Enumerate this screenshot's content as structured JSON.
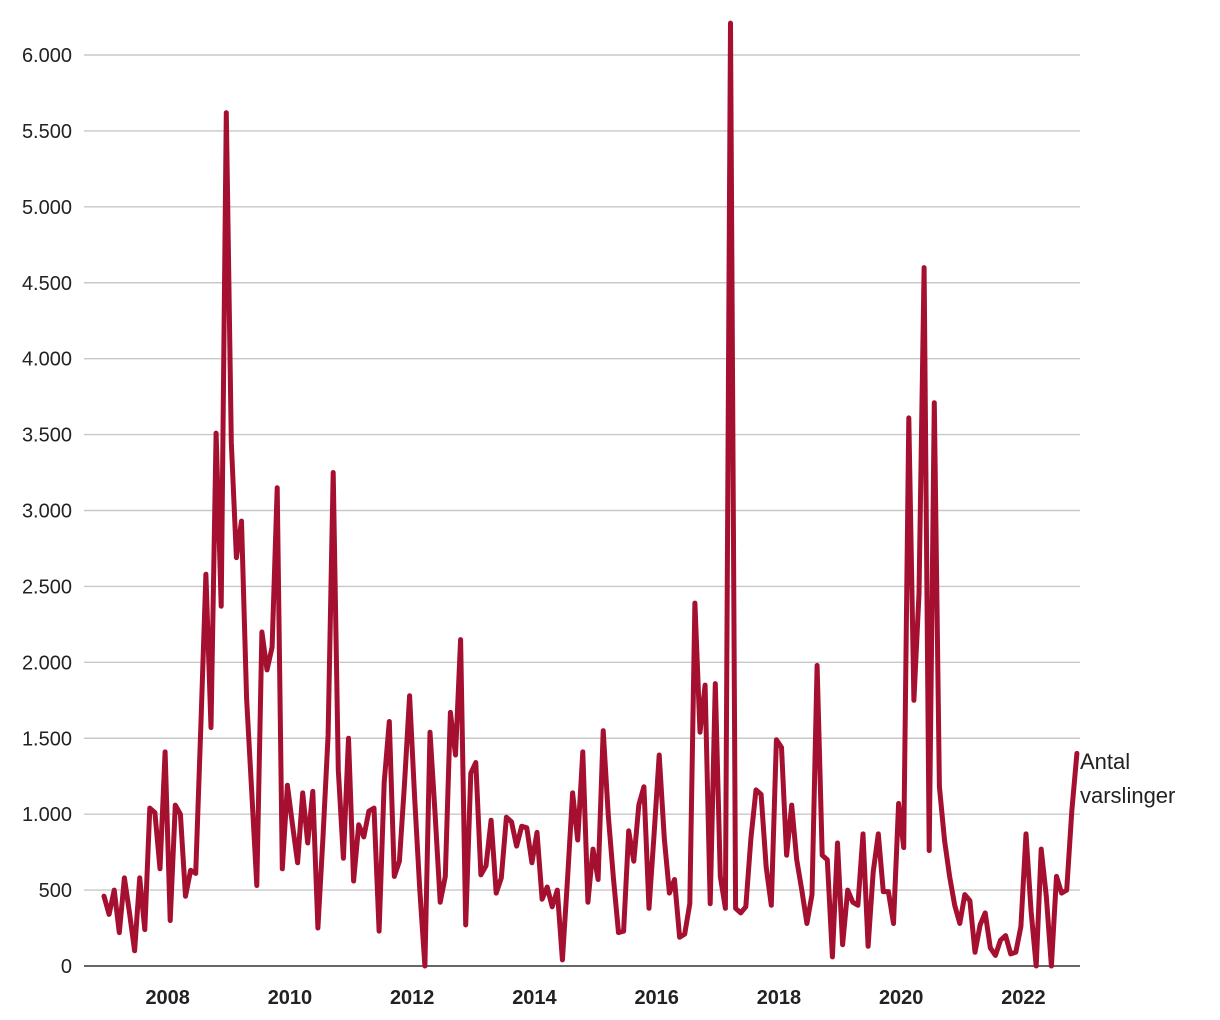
{
  "chart_data": {
    "type": "line",
    "title": "",
    "xlabel": "",
    "ylabel": "",
    "ylim": [
      0,
      6000
    ],
    "xlim": [
      "2007-01",
      "2022-12"
    ],
    "y_ticks": [
      0,
      500,
      1000,
      1500,
      2000,
      2500,
      3000,
      3500,
      4000,
      4500,
      5000,
      5500,
      6000
    ],
    "y_tick_labels": [
      "0",
      "500",
      "1.000",
      "1.500",
      "2.000",
      "2.500",
      "3.000",
      "3.500",
      "4.000",
      "4.500",
      "5.000",
      "5.500",
      "6.000"
    ],
    "x_tick_labels": [
      "2008",
      "2010",
      "2012",
      "2014",
      "2016",
      "2018",
      "2020",
      "2022"
    ],
    "grid": true,
    "color": "#a50f30",
    "series": [
      {
        "name": "Antal varslinger",
        "label_lines": [
          "Antal",
          "varslinger"
        ],
        "points": [
          [
            "2007-01",
            460
          ],
          [
            "2007-02",
            340
          ],
          [
            "2007-03",
            500
          ],
          [
            "2007-04",
            220
          ],
          [
            "2007-05",
            580
          ],
          [
            "2007-06",
            350
          ],
          [
            "2007-07",
            100
          ],
          [
            "2007-08",
            580
          ],
          [
            "2007-09",
            240
          ],
          [
            "2007-10",
            1040
          ],
          [
            "2007-11",
            1010
          ],
          [
            "2007-12",
            640
          ],
          [
            "2008-01",
            1410
          ],
          [
            "2008-02",
            300
          ],
          [
            "2008-03",
            1060
          ],
          [
            "2008-04",
            1000
          ],
          [
            "2008-05",
            460
          ],
          [
            "2008-06",
            630
          ],
          [
            "2008-07",
            610
          ],
          [
            "2008-08",
            1570
          ],
          [
            "2008-09",
            2580
          ],
          [
            "2008-10",
            1570
          ],
          [
            "2008-11",
            3510
          ],
          [
            "2008-12",
            2370
          ],
          [
            "2009-01",
            5620
          ],
          [
            "2009-02",
            3450
          ],
          [
            "2009-03",
            2690
          ],
          [
            "2009-04",
            2930
          ],
          [
            "2009-05",
            1760
          ],
          [
            "2009-06",
            1150
          ],
          [
            "2009-07",
            530
          ],
          [
            "2009-08",
            2200
          ],
          [
            "2009-09",
            1950
          ],
          [
            "2009-10",
            2100
          ],
          [
            "2009-11",
            3150
          ],
          [
            "2009-12",
            640
          ],
          [
            "2010-01",
            1190
          ],
          [
            "2010-02",
            930
          ],
          [
            "2010-03",
            680
          ],
          [
            "2010-04",
            1140
          ],
          [
            "2010-05",
            810
          ],
          [
            "2010-06",
            1150
          ],
          [
            "2010-07",
            250
          ],
          [
            "2010-08",
            850
          ],
          [
            "2010-09",
            1520
          ],
          [
            "2010-10",
            3250
          ],
          [
            "2010-11",
            1290
          ],
          [
            "2010-12",
            710
          ],
          [
            "2011-01",
            1500
          ],
          [
            "2011-02",
            560
          ],
          [
            "2011-03",
            930
          ],
          [
            "2011-04",
            850
          ],
          [
            "2011-05",
            1020
          ],
          [
            "2011-06",
            1040
          ],
          [
            "2011-07",
            230
          ],
          [
            "2011-08",
            1210
          ],
          [
            "2011-09",
            1610
          ],
          [
            "2011-10",
            590
          ],
          [
            "2011-11",
            690
          ],
          [
            "2011-12",
            1200
          ],
          [
            "2012-01",
            1780
          ],
          [
            "2012-02",
            1100
          ],
          [
            "2012-03",
            500
          ],
          [
            "2012-04",
            0
          ],
          [
            "2012-05",
            1540
          ],
          [
            "2012-06",
            1000
          ],
          [
            "2012-07",
            420
          ],
          [
            "2012-08",
            590
          ],
          [
            "2012-09",
            1670
          ],
          [
            "2012-10",
            1390
          ],
          [
            "2012-11",
            2150
          ],
          [
            "2012-12",
            270
          ],
          [
            "2013-01",
            1270
          ],
          [
            "2013-02",
            1340
          ],
          [
            "2013-03",
            600
          ],
          [
            "2013-04",
            660
          ],
          [
            "2013-05",
            960
          ],
          [
            "2013-06",
            480
          ],
          [
            "2013-07",
            580
          ],
          [
            "2013-08",
            980
          ],
          [
            "2013-09",
            950
          ],
          [
            "2013-10",
            790
          ],
          [
            "2013-11",
            920
          ],
          [
            "2013-12",
            910
          ],
          [
            "2014-01",
            680
          ],
          [
            "2014-02",
            880
          ],
          [
            "2014-03",
            440
          ],
          [
            "2014-04",
            520
          ],
          [
            "2014-05",
            390
          ],
          [
            "2014-06",
            500
          ],
          [
            "2014-07",
            40
          ],
          [
            "2014-08",
            570
          ],
          [
            "2014-09",
            1140
          ],
          [
            "2014-10",
            830
          ],
          [
            "2014-11",
            1410
          ],
          [
            "2014-12",
            420
          ],
          [
            "2015-01",
            770
          ],
          [
            "2015-02",
            570
          ],
          [
            "2015-03",
            1550
          ],
          [
            "2015-04",
            990
          ],
          [
            "2015-05",
            580
          ],
          [
            "2015-06",
            220
          ],
          [
            "2015-07",
            230
          ],
          [
            "2015-08",
            890
          ],
          [
            "2015-09",
            690
          ],
          [
            "2015-10",
            1060
          ],
          [
            "2015-11",
            1180
          ],
          [
            "2015-12",
            380
          ],
          [
            "2016-01",
            870
          ],
          [
            "2016-02",
            1390
          ],
          [
            "2016-03",
            840
          ],
          [
            "2016-04",
            480
          ],
          [
            "2016-05",
            570
          ],
          [
            "2016-06",
            190
          ],
          [
            "2016-07",
            210
          ],
          [
            "2016-08",
            410
          ],
          [
            "2016-09",
            2390
          ],
          [
            "2016-10",
            1540
          ],
          [
            "2016-11",
            1850
          ],
          [
            "2016-12",
            410
          ],
          [
            "2017-01",
            1860
          ],
          [
            "2017-02",
            590
          ],
          [
            "2017-03",
            380
          ],
          [
            "2017-04",
            6210
          ],
          [
            "2017-05",
            380
          ],
          [
            "2017-06",
            350
          ],
          [
            "2017-07",
            390
          ],
          [
            "2017-08",
            840
          ],
          [
            "2017-09",
            1160
          ],
          [
            "2017-10",
            1130
          ],
          [
            "2017-11",
            650
          ],
          [
            "2017-12",
            400
          ],
          [
            "2018-01",
            1490
          ],
          [
            "2018-02",
            1440
          ],
          [
            "2018-03",
            730
          ],
          [
            "2018-04",
            1060
          ],
          [
            "2018-05",
            700
          ],
          [
            "2018-06",
            500
          ],
          [
            "2018-07",
            280
          ],
          [
            "2018-08",
            470
          ],
          [
            "2018-09",
            1980
          ],
          [
            "2018-10",
            730
          ],
          [
            "2018-11",
            700
          ],
          [
            "2018-12",
            60
          ],
          [
            "2019-01",
            810
          ],
          [
            "2019-02",
            140
          ],
          [
            "2019-03",
            500
          ],
          [
            "2019-04",
            420
          ],
          [
            "2019-05",
            400
          ],
          [
            "2019-06",
            870
          ],
          [
            "2019-07",
            130
          ],
          [
            "2019-08",
            620
          ],
          [
            "2019-09",
            870
          ],
          [
            "2019-10",
            490
          ],
          [
            "2019-11",
            490
          ],
          [
            "2019-12",
            280
          ],
          [
            "2020-01",
            1070
          ],
          [
            "2020-02",
            780
          ],
          [
            "2020-03",
            3610
          ],
          [
            "2020-04",
            1750
          ],
          [
            "2020-05",
            2450
          ],
          [
            "2020-06",
            4600
          ],
          [
            "2020-07",
            760
          ],
          [
            "2020-08",
            3710
          ],
          [
            "2020-09",
            1180
          ],
          [
            "2020-10",
            830
          ],
          [
            "2020-11",
            590
          ],
          [
            "2020-12",
            400
          ],
          [
            "2021-01",
            280
          ],
          [
            "2021-02",
            470
          ],
          [
            "2021-03",
            430
          ],
          [
            "2021-04",
            90
          ],
          [
            "2021-05",
            270
          ],
          [
            "2021-06",
            350
          ],
          [
            "2021-07",
            120
          ],
          [
            "2021-08",
            70
          ],
          [
            "2021-09",
            170
          ],
          [
            "2021-10",
            200
          ],
          [
            "2021-11",
            80
          ],
          [
            "2021-12",
            90
          ],
          [
            "2022-01",
            260
          ],
          [
            "2022-02",
            870
          ],
          [
            "2022-03",
            360
          ],
          [
            "2022-04",
            0
          ],
          [
            "2022-05",
            770
          ],
          [
            "2022-06",
            460
          ],
          [
            "2022-07",
            0
          ],
          [
            "2022-08",
            590
          ],
          [
            "2022-09",
            480
          ],
          [
            "2022-10",
            500
          ],
          [
            "2022-11",
            1020
          ],
          [
            "2022-12",
            1400
          ]
        ]
      }
    ]
  }
}
